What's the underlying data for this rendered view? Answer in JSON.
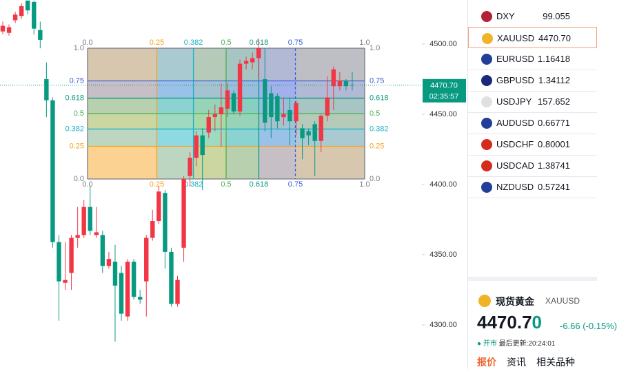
{
  "chart_data": {
    "type": "candlestick",
    "open": [
      4509,
      4508,
      4517,
      4520,
      4531,
      4530,
      4510,
      4475,
      4460,
      4359,
      4330,
      4337,
      4362,
      4364,
      4384,
      4364,
      4364,
      4342,
      4345,
      4337,
      4306,
      4345,
      4320,
      4331,
      4362,
      4374,
      4394,
      4352,
      4315,
      4355,
      4406,
      4419,
      4435,
      4437,
      4448,
      4450,
      4454,
      4465,
      4452,
      4486,
      4487,
      4490,
      4475,
      4465,
      4463,
      4448,
      4453,
      4445,
      4440,
      4438,
      4443,
      4431,
      4449,
      4470,
      4470,
      4474,
      4471
    ],
    "high": [
      4516,
      4514,
      4523,
      4529,
      4531,
      4531,
      4516,
      4487,
      4462,
      4364,
      4359,
      4364,
      4384,
      4389,
      4399,
      4384,
      4367,
      4352,
      4357,
      4342,
      4347,
      4347,
      4325,
      4364,
      4382,
      4399,
      4396,
      4355,
      4335,
      4406,
      4423,
      4438,
      4440,
      4453,
      4457,
      4472,
      4472,
      4467,
      4489,
      4491,
      4494,
      4504,
      4497,
      4470,
      4465,
      4462,
      4462,
      4460,
      4443,
      4440,
      4445,
      4450,
      4477,
      4484,
      4480,
      4475,
      4480
    ],
    "low": [
      4507,
      4506,
      4515,
      4518,
      4521,
      4507,
      4497,
      4448,
      4355,
      4303,
      4325,
      4325,
      4355,
      4362,
      4364,
      4362,
      4337,
      4340,
      4288,
      4303,
      4303,
      4318,
      4315,
      4306,
      4360,
      4372,
      4340,
      4313,
      4313,
      4345,
      4399,
      4413,
      4396,
      4433,
      4438,
      4427,
      4448,
      4450,
      4449,
      4482,
      4482,
      4475,
      4438,
      4433,
      4440,
      4442,
      4428,
      4435,
      4418,
      4428,
      4406,
      4423,
      4445,
      4453,
      4467,
      4467,
      4467
    ],
    "close": [
      4513,
      4512,
      4521,
      4527,
      4524,
      4511,
      4503,
      4460,
      4359,
      4331,
      4332,
      4362,
      4364,
      4384,
      4367,
      4366,
      4342,
      4347,
      4328,
      4308,
      4345,
      4320,
      4318,
      4362,
      4374,
      4395,
      4352,
      4315,
      4332,
      4404,
      4419,
      4435,
      4421,
      4448,
      4450,
      4455,
      4467,
      4452,
      4486,
      4488,
      4490,
      4497,
      4444,
      4448,
      4445,
      4450,
      4445,
      4458,
      4433,
      4435,
      4431,
      4449,
      4462,
      4482,
      4474,
      4470,
      4470.7
    ],
    "up_color": "#f23645",
    "down_color": "#089981",
    "ylim": [
      4268.6,
      4531.4
    ],
    "yticks": [
      {
        "value": 4300,
        "label": "4300.00"
      },
      {
        "value": 4350,
        "label": "4350.00"
      },
      {
        "value": 4400,
        "label": "4400.00"
      },
      {
        "value": 4450,
        "label": "4450.00"
      },
      {
        "value": 4500,
        "label": "4500.00"
      }
    ],
    "last_price": {
      "value": 4470.7,
      "label": "4470.70"
    },
    "countdown": "02:35:57",
    "fib_levels": [
      {
        "value": 0,
        "label": "0.0",
        "color": "#787b86"
      },
      {
        "value": 0.25,
        "label": "0.25",
        "color": "#f7a21b"
      },
      {
        "value": 0.382,
        "label": "0.382",
        "color": "#17b1c6"
      },
      {
        "value": 0.5,
        "label": "0.5",
        "color": "#4caf50"
      },
      {
        "value": 0.618,
        "label": "0.618",
        "color": "#089981"
      },
      {
        "value": 0.75,
        "label": "0.75",
        "color": "#3d5fd6"
      },
      {
        "value": 1,
        "label": "1.0",
        "color": "#787b86"
      }
    ]
  },
  "watchlist": {
    "rows": [
      {
        "symbol": "DXY",
        "price": "99.055"
      },
      {
        "symbol": "XAUUSD",
        "price": "4470.70"
      },
      {
        "symbol": "EURUSD",
        "price": "1.16418"
      },
      {
        "symbol": "GBPUSD",
        "price": "1.34112"
      },
      {
        "symbol": "USDJPY",
        "price": "157.652"
      },
      {
        "symbol": "AUDUSD",
        "price": "0.66771"
      },
      {
        "symbol": "USDCHF",
        "price": "0.80001"
      },
      {
        "symbol": "USDCAD",
        "price": "1.38741"
      },
      {
        "symbol": "NZDUSD",
        "price": "0.57241"
      }
    ]
  },
  "quote": {
    "name": "现货黄金",
    "symbol": "XAUUSD",
    "price_main": "4470.7",
    "price_last_digit": "0",
    "change": "-6.66 (-0.15%)",
    "status": "● 开市",
    "updated": "最后更新:20:24:01",
    "tabs": [
      "报价",
      "资讯",
      "相关品种"
    ]
  }
}
